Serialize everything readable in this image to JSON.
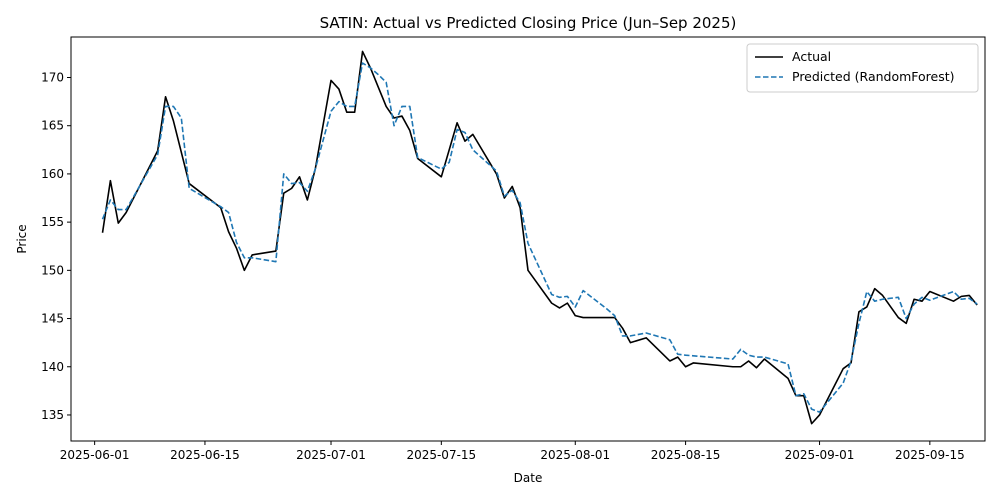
{
  "chart_data": {
    "type": "line",
    "title": "SATIN: Actual vs Predicted Closing Price (Jun–Sep 2025)",
    "xlabel": "Date",
    "ylabel": "Price",
    "xlim": [
      "2025-05-29",
      "2025-09-22"
    ],
    "ylim": [
      132.3,
      174.2
    ],
    "x_ticks": [
      "2025-06-01",
      "2025-06-15",
      "2025-07-01",
      "2025-07-15",
      "2025-08-01",
      "2025-08-15",
      "2025-09-01",
      "2025-09-15"
    ],
    "y_ticks": [
      135,
      140,
      145,
      150,
      155,
      160,
      165,
      170
    ],
    "grid": false,
    "legend_position": "top-right",
    "series": [
      {
        "name": "Actual",
        "color": "#000000",
        "style": "solid",
        "points": [
          [
            "2025-06-02",
            153.9
          ],
          [
            "2025-06-03",
            159.3
          ],
          [
            "2025-06-04",
            154.9
          ],
          [
            "2025-06-05",
            156.0
          ],
          [
            "2025-06-09",
            162.4
          ],
          [
            "2025-06-10",
            168.0
          ],
          [
            "2025-06-11",
            165.5
          ],
          [
            "2025-06-13",
            159.0
          ],
          [
            "2025-06-17",
            156.5
          ],
          [
            "2025-06-18",
            154.0
          ],
          [
            "2025-06-19",
            152.3
          ],
          [
            "2025-06-20",
            150.0
          ],
          [
            "2025-06-21",
            151.6
          ],
          [
            "2025-06-24",
            152.0
          ],
          [
            "2025-06-25",
            158.0
          ],
          [
            "2025-06-26",
            158.5
          ],
          [
            "2025-06-27",
            159.7
          ],
          [
            "2025-06-28",
            157.3
          ],
          [
            "2025-06-29",
            160.5
          ],
          [
            "2025-07-01",
            169.7
          ],
          [
            "2025-07-02",
            168.8
          ],
          [
            "2025-07-03",
            166.4
          ],
          [
            "2025-07-04",
            166.4
          ],
          [
            "2025-07-05",
            172.7
          ],
          [
            "2025-07-06",
            171.0
          ],
          [
            "2025-07-07",
            169.0
          ],
          [
            "2025-07-08",
            167.0
          ],
          [
            "2025-07-09",
            165.8
          ],
          [
            "2025-07-10",
            166.0
          ],
          [
            "2025-07-11",
            164.5
          ],
          [
            "2025-07-12",
            161.6
          ],
          [
            "2025-07-15",
            159.7
          ],
          [
            "2025-07-17",
            165.3
          ],
          [
            "2025-07-18",
            163.4
          ],
          [
            "2025-07-19",
            164.1
          ],
          [
            "2025-07-22",
            160.0
          ],
          [
            "2025-07-23",
            157.5
          ],
          [
            "2025-07-24",
            158.7
          ],
          [
            "2025-07-25",
            156.5
          ],
          [
            "2025-07-26",
            150.0
          ],
          [
            "2025-07-29",
            146.6
          ],
          [
            "2025-07-30",
            146.1
          ],
          [
            "2025-07-31",
            146.6
          ],
          [
            "2025-08-01",
            145.3
          ],
          [
            "2025-08-02",
            145.1
          ],
          [
            "2025-08-05",
            145.1
          ],
          [
            "2025-08-06",
            145.1
          ],
          [
            "2025-08-07",
            144.0
          ],
          [
            "2025-08-08",
            142.5
          ],
          [
            "2025-08-10",
            143.0
          ],
          [
            "2025-08-13",
            140.6
          ],
          [
            "2025-08-14",
            141.0
          ],
          [
            "2025-08-15",
            140.0
          ],
          [
            "2025-08-16",
            140.4
          ],
          [
            "2025-08-21",
            140.0
          ],
          [
            "2025-08-22",
            140.0
          ],
          [
            "2025-08-23",
            140.6
          ],
          [
            "2025-08-24",
            139.9
          ],
          [
            "2025-08-25",
            140.8
          ],
          [
            "2025-08-28",
            138.8
          ],
          [
            "2025-08-29",
            137.0
          ],
          [
            "2025-08-30",
            137.0
          ],
          [
            "2025-08-31",
            134.1
          ],
          [
            "2025-09-01",
            135.0
          ],
          [
            "2025-09-04",
            139.8
          ],
          [
            "2025-09-05",
            140.4
          ],
          [
            "2025-09-06",
            145.7
          ],
          [
            "2025-09-07",
            146.2
          ],
          [
            "2025-09-08",
            148.1
          ],
          [
            "2025-09-09",
            147.4
          ],
          [
            "2025-09-11",
            145.1
          ],
          [
            "2025-09-12",
            144.5
          ],
          [
            "2025-09-13",
            147.0
          ],
          [
            "2025-09-14",
            146.8
          ],
          [
            "2025-09-15",
            147.8
          ],
          [
            "2025-09-18",
            146.8
          ],
          [
            "2025-09-19",
            147.3
          ],
          [
            "2025-09-20",
            147.4
          ],
          [
            "2025-09-21",
            146.4
          ]
        ]
      },
      {
        "name": "Predicted (RandomForest)",
        "color": "#1f77b4",
        "style": "dashed",
        "points": [
          [
            "2025-06-02",
            155.3
          ],
          [
            "2025-06-03",
            157.3
          ],
          [
            "2025-06-04",
            156.3
          ],
          [
            "2025-06-05",
            156.3
          ],
          [
            "2025-06-09",
            162.0
          ],
          [
            "2025-06-10",
            167.0
          ],
          [
            "2025-06-11",
            167.0
          ],
          [
            "2025-06-12",
            165.8
          ],
          [
            "2025-06-13",
            158.5
          ],
          [
            "2025-06-17",
            156.6
          ],
          [
            "2025-06-18",
            156.0
          ],
          [
            "2025-06-19",
            152.9
          ],
          [
            "2025-06-20",
            151.3
          ],
          [
            "2025-06-21",
            151.3
          ],
          [
            "2025-06-24",
            150.9
          ],
          [
            "2025-06-25",
            160.0
          ],
          [
            "2025-06-26",
            159.0
          ],
          [
            "2025-06-27",
            159.1
          ],
          [
            "2025-06-28",
            158.2
          ],
          [
            "2025-06-29",
            160.5
          ],
          [
            "2025-07-01",
            166.5
          ],
          [
            "2025-07-02",
            167.5
          ],
          [
            "2025-07-03",
            167.0
          ],
          [
            "2025-07-04",
            167.0
          ],
          [
            "2025-07-05",
            171.5
          ],
          [
            "2025-07-06",
            171.0
          ],
          [
            "2025-07-07",
            170.3
          ],
          [
            "2025-07-08",
            169.5
          ],
          [
            "2025-07-09",
            165.0
          ],
          [
            "2025-07-10",
            167.0
          ],
          [
            "2025-07-11",
            167.0
          ],
          [
            "2025-07-12",
            161.7
          ],
          [
            "2025-07-15",
            160.5
          ],
          [
            "2025-07-16",
            161.2
          ],
          [
            "2025-07-17",
            164.6
          ],
          [
            "2025-07-18",
            164.3
          ],
          [
            "2025-07-19",
            162.5
          ],
          [
            "2025-07-22",
            160.3
          ],
          [
            "2025-07-23",
            157.7
          ],
          [
            "2025-07-24",
            158.3
          ],
          [
            "2025-07-25",
            157.0
          ],
          [
            "2025-07-26",
            152.8
          ],
          [
            "2025-07-29",
            147.5
          ],
          [
            "2025-07-30",
            147.2
          ],
          [
            "2025-07-31",
            147.3
          ],
          [
            "2025-08-01",
            146.2
          ],
          [
            "2025-08-02",
            147.9
          ],
          [
            "2025-08-05",
            146.0
          ],
          [
            "2025-08-06",
            145.3
          ],
          [
            "2025-08-07",
            143.2
          ],
          [
            "2025-08-08",
            143.2
          ],
          [
            "2025-08-10",
            143.5
          ],
          [
            "2025-08-13",
            142.8
          ],
          [
            "2025-08-14",
            141.3
          ],
          [
            "2025-08-15",
            141.2
          ],
          [
            "2025-08-21",
            140.8
          ],
          [
            "2025-08-22",
            141.8
          ],
          [
            "2025-08-23",
            141.2
          ],
          [
            "2025-08-24",
            141.0
          ],
          [
            "2025-08-25",
            141.0
          ],
          [
            "2025-08-28",
            140.3
          ],
          [
            "2025-08-29",
            137.0
          ],
          [
            "2025-08-30",
            137.2
          ],
          [
            "2025-08-31",
            135.6
          ],
          [
            "2025-09-01",
            135.3
          ],
          [
            "2025-09-04",
            138.3
          ],
          [
            "2025-09-05",
            140.6
          ],
          [
            "2025-09-06",
            144.5
          ],
          [
            "2025-09-07",
            147.8
          ],
          [
            "2025-09-08",
            146.8
          ],
          [
            "2025-09-09",
            147.0
          ],
          [
            "2025-09-11",
            147.2
          ],
          [
            "2025-09-12",
            145.0
          ],
          [
            "2025-09-13",
            146.5
          ],
          [
            "2025-09-14",
            147.2
          ],
          [
            "2025-09-15",
            146.9
          ],
          [
            "2025-09-18",
            147.8
          ],
          [
            "2025-09-19",
            147.0
          ],
          [
            "2025-09-20",
            147.1
          ],
          [
            "2025-09-21",
            146.5
          ]
        ]
      }
    ]
  }
}
